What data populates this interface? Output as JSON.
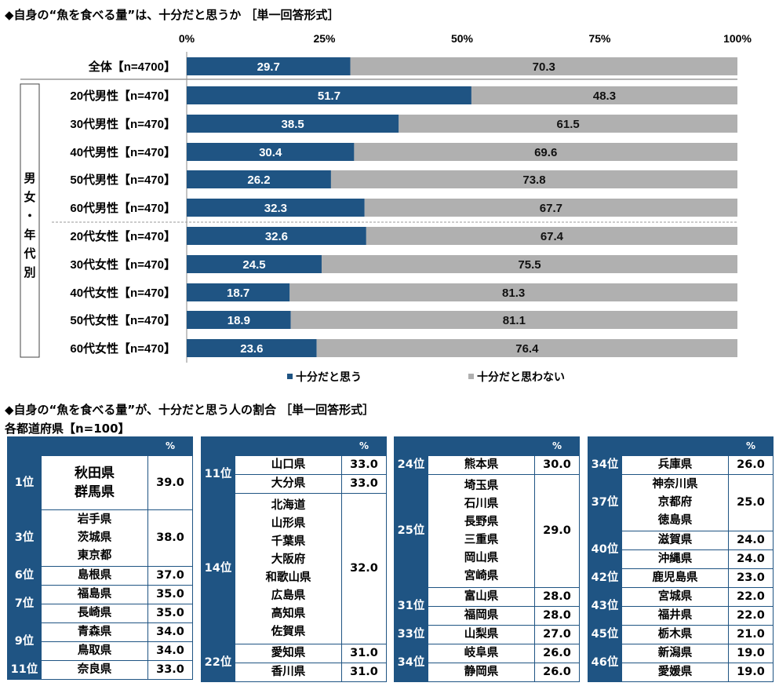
{
  "title1": "◆自身の“魚を食べる量”は、十分だと思うか ［単一回答形式］",
  "title2": "◆自身の“魚を食べる量”が、十分だと思う人の割合 ［単一回答形式］",
  "subtitle2": "各都道府県【n=100】",
  "group_label": "男女・年代別",
  "colors": {
    "yes": "#1f5483",
    "no": "#b0b0b0",
    "border": "#1f5483"
  },
  "chart_data": {
    "type": "bar",
    "stacked": true,
    "orientation": "horizontal",
    "x_ticks": [
      "0%",
      "25%",
      "50%",
      "75%",
      "100%"
    ],
    "xlim": [
      0,
      100
    ],
    "categories": [
      "全体【n=4700】",
      "20代男性【n=470】",
      "30代男性【n=470】",
      "40代男性【n=470】",
      "50代男性【n=470】",
      "60代男性【n=470】",
      "20代女性【n=470】",
      "30代女性【n=470】",
      "40代女性【n=470】",
      "50代女性【n=470】",
      "60代女性【n=470】"
    ],
    "series": [
      {
        "name": "十分だと思う",
        "values": [
          29.7,
          51.7,
          38.5,
          30.4,
          26.2,
          32.3,
          32.6,
          24.5,
          18.7,
          18.9,
          23.6
        ],
        "labels": [
          "29.7",
          "51.7",
          "38.5",
          "30.4",
          "26.2",
          "32.3",
          "32.6",
          "24.5",
          "18.7",
          "18.9",
          "23.6"
        ]
      },
      {
        "name": "十分だと思わない",
        "values": [
          70.3,
          48.3,
          61.5,
          69.6,
          73.8,
          67.7,
          67.4,
          75.5,
          81.3,
          81.1,
          76.4
        ],
        "labels": [
          "70.3",
          "48.3",
          "61.5",
          "69.6",
          "73.8",
          "67.7",
          "67.4",
          "75.5",
          "81.3",
          "81.1",
          "76.4"
        ]
      }
    ],
    "legend": "bottom"
  },
  "tables": [
    {
      "header_pct": "%",
      "groups": [
        {
          "rank": "1位",
          "prefs": [
            "秋田県",
            "群馬県"
          ],
          "value": "39.0"
        },
        {
          "rank": "3位",
          "prefs": [
            "岩手県",
            "茨城県",
            "東京都"
          ],
          "value": "38.0"
        },
        {
          "rank": "6位",
          "prefs": [
            "島根県"
          ],
          "value": "37.0"
        },
        {
          "rank": "7位",
          "prefs": [
            "福島県",
            "長崎県"
          ],
          "values": [
            "35.0",
            "35.0"
          ]
        },
        {
          "rank": "9位",
          "prefs": [
            "青森県",
            "鳥取県"
          ],
          "values": [
            "34.0",
            "34.0"
          ]
        },
        {
          "rank": "11位",
          "prefs": [
            "奈良県"
          ],
          "value": "33.0"
        }
      ]
    },
    {
      "header_pct": "%",
      "groups": [
        {
          "rank": "11位",
          "prefs": [
            "山口県",
            "大分県"
          ],
          "values": [
            "33.0",
            "33.0"
          ]
        },
        {
          "rank": "14位",
          "prefs": [
            "北海道",
            "山形県",
            "千葉県",
            "大阪府",
            "和歌山県",
            "広島県",
            "高知県",
            "佐賀県"
          ],
          "value": "32.0"
        },
        {
          "rank": "22位",
          "prefs": [
            "愛知県",
            "香川県"
          ],
          "values": [
            "31.0",
            "31.0"
          ]
        }
      ]
    },
    {
      "header_pct": "%",
      "groups": [
        {
          "rank": "24位",
          "prefs": [
            "熊本県"
          ],
          "value": "30.0"
        },
        {
          "rank": "25位",
          "prefs": [
            "埼玉県",
            "石川県",
            "長野県",
            "三重県",
            "岡山県",
            "宮崎県"
          ],
          "value": "29.0"
        },
        {
          "rank": "31位",
          "prefs": [
            "富山県",
            "福岡県"
          ],
          "values": [
            "28.0",
            "28.0"
          ]
        },
        {
          "rank": "33位",
          "prefs": [
            "山梨県"
          ],
          "value": "27.0"
        },
        {
          "rank": "34位",
          "prefs": [
            "岐阜県",
            "静岡県"
          ],
          "values": [
            "26.0",
            "26.0"
          ]
        }
      ]
    },
    {
      "header_pct": "%",
      "groups": [
        {
          "rank": "34位",
          "prefs": [
            "兵庫県"
          ],
          "value": "26.0"
        },
        {
          "rank": "37位",
          "prefs": [
            "神奈川県",
            "京都府",
            "徳島県"
          ],
          "value": "25.0"
        },
        {
          "rank": "40位",
          "prefs": [
            "滋賀県",
            "沖縄県"
          ],
          "values": [
            "24.0",
            "24.0"
          ]
        },
        {
          "rank": "42位",
          "prefs": [
            "鹿児島県"
          ],
          "value": "23.0"
        },
        {
          "rank": "43位",
          "prefs": [
            "宮城県",
            "福井県"
          ],
          "values": [
            "22.0",
            "22.0"
          ]
        },
        {
          "rank": "45位",
          "prefs": [
            "栃木県"
          ],
          "value": "21.0"
        },
        {
          "rank": "46位",
          "prefs": [
            "新潟県",
            "愛媛県"
          ],
          "values": [
            "19.0",
            "19.0"
          ]
        }
      ]
    }
  ]
}
